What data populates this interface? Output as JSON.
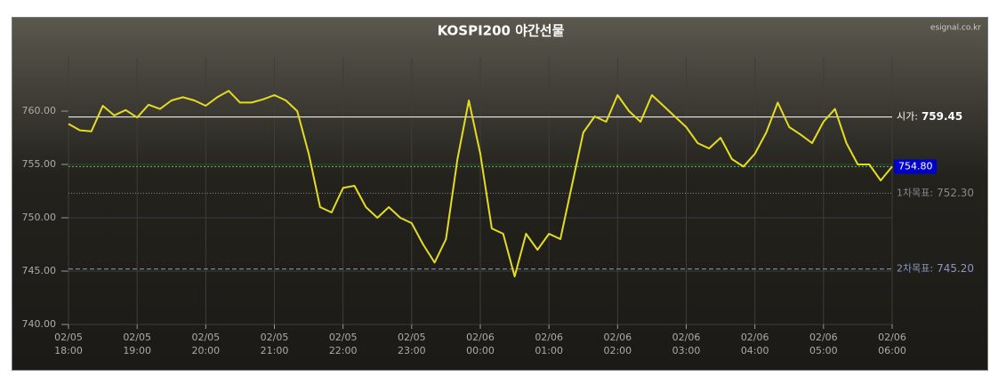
{
  "chart_data": {
    "type": "line",
    "title": "KOSPI200 야간선물",
    "watermark": "esignal.co.kr",
    "x": [
      "02/05 18:00",
      "02/05 18:10",
      "02/05 18:20",
      "02/05 18:30",
      "02/05 18:40",
      "02/05 18:50",
      "02/05 19:00",
      "02/05 19:10",
      "02/05 19:20",
      "02/05 19:30",
      "02/05 19:40",
      "02/05 19:50",
      "02/05 20:00",
      "02/05 20:10",
      "02/05 20:20",
      "02/05 20:30",
      "02/05 20:40",
      "02/05 20:50",
      "02/05 21:00",
      "02/05 21:10",
      "02/05 21:20",
      "02/05 21:30",
      "02/05 21:40",
      "02/05 21:50",
      "02/05 22:00",
      "02/05 22:10",
      "02/05 22:20",
      "02/05 22:30",
      "02/05 22:40",
      "02/05 22:50",
      "02/05 23:00",
      "02/05 23:10",
      "02/05 23:20",
      "02/05 23:30",
      "02/05 23:40",
      "02/05 23:50",
      "02/06 00:00",
      "02/06 00:10",
      "02/06 00:20",
      "02/06 00:30",
      "02/06 00:40",
      "02/06 00:50",
      "02/06 01:00",
      "02/06 01:10",
      "02/06 01:20",
      "02/06 01:30",
      "02/06 01:40",
      "02/06 01:50",
      "02/06 02:00",
      "02/06 02:10",
      "02/06 02:20",
      "02/06 02:30",
      "02/06 02:40",
      "02/06 02:50",
      "02/06 03:00",
      "02/06 03:10",
      "02/06 03:20",
      "02/06 03:30",
      "02/06 03:40",
      "02/06 03:50",
      "02/06 04:00",
      "02/06 04:10",
      "02/06 04:20",
      "02/06 04:30",
      "02/06 04:40",
      "02/06 04:50",
      "02/06 05:00",
      "02/06 05:10",
      "02/06 05:20",
      "02/06 05:30",
      "02/06 05:40",
      "02/06 05:50",
      "02/06 06:00"
    ],
    "series": [
      {
        "color": "#e4dc22",
        "values": [
          758.8,
          758.2,
          758.1,
          760.5,
          759.6,
          760.1,
          759.4,
          760.6,
          760.2,
          761.0,
          761.3,
          761.0,
          760.5,
          761.3,
          761.9,
          760.8,
          760.8,
          761.1,
          761.5,
          761.0,
          760.0,
          756.0,
          751.0,
          750.5,
          752.8,
          753.0,
          751.0,
          750.0,
          751.0,
          750.0,
          749.5,
          747.5,
          745.8,
          748.0,
          755.5,
          761.0,
          756.0,
          749.0,
          748.5,
          744.5,
          748.5,
          747.0,
          748.5,
          748.0,
          753.0,
          758.0,
          759.5,
          759.0,
          761.5,
          760.0,
          759.0,
          761.5,
          760.5,
          759.5,
          758.5,
          757.0,
          756.5,
          757.5,
          755.5,
          754.8,
          756.0,
          758.0,
          760.8,
          758.5,
          757.8,
          757.0,
          759.0,
          760.2,
          757.0,
          755.0,
          755.0,
          753.5,
          754.8
        ]
      }
    ],
    "levels": [
      {
        "label": "시가:",
        "value": 759.45,
        "value_label": "759.45",
        "color": "#ffffff",
        "dash": "none"
      },
      {
        "value": 754.8,
        "value_label": "754.80",
        "color": "#44cc44",
        "dash": "2,2",
        "box": "#0000cc"
      },
      {
        "label": "1차목표:",
        "value": 752.3,
        "value_label": "752.30",
        "color": "#888888",
        "dash": "1,2"
      },
      {
        "label": "2차목표:",
        "value": 745.2,
        "value_label": "745.20",
        "color": "#8899bb",
        "dash": "5,3"
      }
    ],
    "xlim": [
      "02/05 18:00",
      "02/06 06:00"
    ],
    "xticks": [
      "02/05 18:00",
      "02/05 19:00",
      "02/05 20:00",
      "02/05 21:00",
      "02/05 22:00",
      "02/05 23:00",
      "02/06 00:00",
      "02/06 01:00",
      "02/06 02:00",
      "02/06 03:00",
      "02/06 04:00",
      "02/06 05:00",
      "02/06 06:00"
    ],
    "ylim": [
      740,
      765
    ],
    "yticks": [
      {
        "value": 740,
        "label": "740.00"
      },
      {
        "value": 745,
        "label": "745.00"
      },
      {
        "value": 750,
        "label": "750.00"
      },
      {
        "value": 755,
        "label": "755.00"
      },
      {
        "value": 760,
        "label": "760.00"
      }
    ],
    "grid": true
  }
}
